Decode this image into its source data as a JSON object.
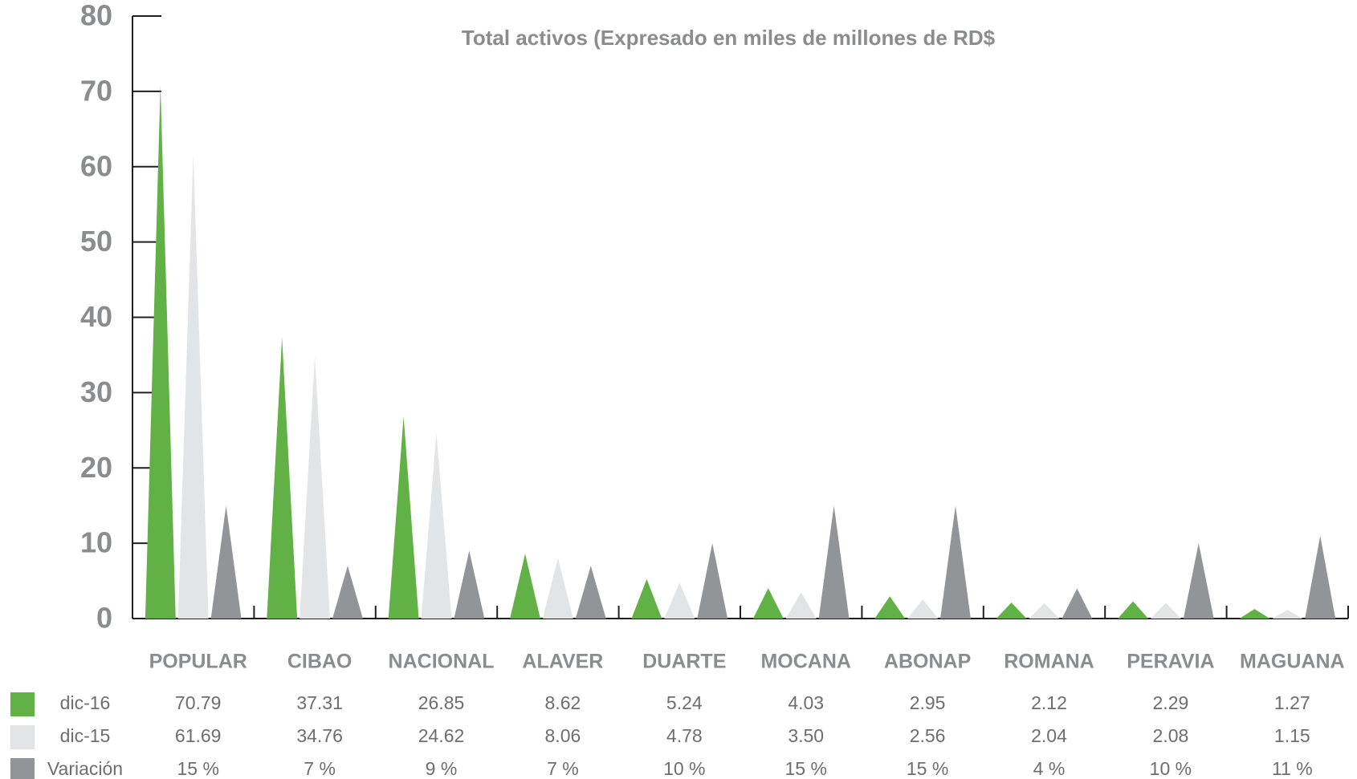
{
  "chart_data": {
    "type": "triangle-bar",
    "title": "Total activos (Expresado en miles de millones de RD$",
    "categories": [
      "POPULAR",
      "CIBAO",
      "NACIONAL",
      "ALAVER",
      "DUARTE",
      "MOCANA",
      "ABONAP",
      "ROMANA",
      "PERAVIA",
      "MAGUANA"
    ],
    "series": [
      {
        "name": "dic-16",
        "color": "#62b146",
        "values": [
          70.79,
          37.31,
          26.85,
          8.62,
          5.24,
          4.03,
          2.95,
          2.12,
          2.29,
          1.27
        ],
        "value_labels": [
          "70.79",
          "37.31",
          "26.85",
          "8.62",
          "5.24",
          "4.03",
          "2.95",
          "2.12",
          "2.29",
          "1.27"
        ]
      },
      {
        "name": "dic-15",
        "color": "#e3e4e5",
        "values": [
          61.69,
          34.76,
          24.62,
          8.06,
          4.78,
          3.5,
          2.56,
          2.04,
          2.08,
          1.15
        ],
        "value_labels": [
          "61.69",
          "34.76",
          "24.62",
          "8.06",
          "4.78",
          "3.50",
          "2.56",
          "2.04",
          "2.08",
          "1.15"
        ]
      },
      {
        "name": "Variación",
        "color": "#929497",
        "values": [
          15,
          7,
          9,
          7,
          10,
          15,
          15,
          4,
          10,
          11
        ],
        "value_labels": [
          "15 %",
          "7 %",
          "9 %",
          "7 %",
          "10 %",
          "15 %",
          "15 %",
          "4 %",
          "10 %",
          "11 %"
        ]
      }
    ],
    "ylim": [
      0,
      80
    ],
    "yticks": [
      0,
      10,
      20,
      30,
      40,
      50,
      60,
      70,
      80
    ]
  }
}
